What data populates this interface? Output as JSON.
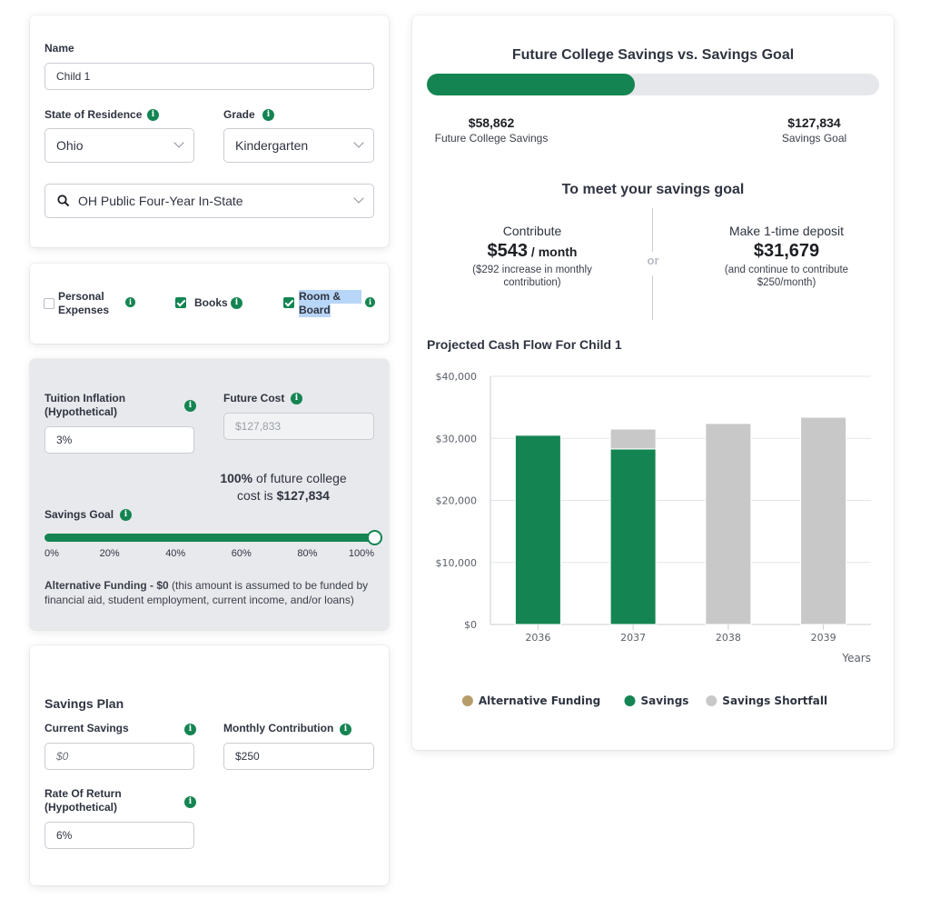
{
  "child_card": {
    "name_label": "Name",
    "name_value": "Child 1",
    "state_label": "State of Residence",
    "state_value": "Ohio",
    "grade_label": "Grade",
    "grade_value": "Kindergarten",
    "school_value": "OH Public Four-Year In-State"
  },
  "expenses": {
    "personal_label_1": "Personal",
    "personal_label_2": "Expenses",
    "personal_checked": false,
    "books_label": "Books",
    "books_checked": true,
    "room_label_1": "Room &",
    "room_label_2": "Board",
    "room_checked": true
  },
  "inflation": {
    "tuition_label_1": "Tuition Inflation",
    "tuition_label_2": "(Hypothetical)",
    "tuition_value": "3%",
    "future_cost_label": "Future Cost",
    "future_cost_placeholder": "$127,833",
    "coverage_pct": "100%",
    "coverage_text_1": " of future college",
    "coverage_text_2": "cost is ",
    "coverage_amount": "$127,834",
    "savings_goal_label": "Savings Goal",
    "slider_fraction": 1.0,
    "slider_ticks": [
      "0%",
      "20%",
      "40%",
      "60%",
      "80%",
      "100%"
    ],
    "alt_funding_bold": "Alternative Funding - $0",
    "alt_funding_text_1": " (this amount is assumed to be funded by",
    "alt_funding_text_2": "financial aid, student employment, current income, and/or loans)"
  },
  "plan": {
    "title": "Savings Plan",
    "current_savings_label": "Current Savings",
    "current_savings_placeholder": "$0",
    "monthly_label": "Monthly Contribution",
    "monthly_value": "$250",
    "return_label_1": "Rate Of Return",
    "return_label_2": "(Hypothetical)",
    "return_value": "6%"
  },
  "summary": {
    "title": "Future College Savings vs. Savings Goal",
    "progress_fraction": 0.46,
    "future_savings_amount": "$58,862",
    "future_savings_label": "Future College Savings",
    "goal_amount": "$127,834",
    "goal_label": "Savings Goal",
    "meet_goal_title": "To meet your savings goal",
    "contribute_label": "Contribute",
    "contribute_amount": "$543",
    "contribute_unit": " / month",
    "contribute_note_1": "($292 increase in monthly",
    "contribute_note_2": "contribution)",
    "or_label": "or",
    "deposit_label": "Make 1-time deposit",
    "deposit_amount": "$31,679",
    "deposit_note_1": "(and continue to contribute",
    "deposit_note_2": "$250/month)"
  },
  "colors": {
    "green": "#148552",
    "gray_bar": "#c8c8c8",
    "gold": "#b69e6b"
  },
  "chart_data": {
    "type": "bar",
    "title": "Projected Cash Flow For Child 1",
    "xlabel": "Years",
    "ylabel": "",
    "categories": [
      "2036",
      "2037",
      "2038",
      "2039"
    ],
    "ylim": [
      0,
      40000
    ],
    "yticks": [
      0,
      10000,
      20000,
      30000,
      40000
    ],
    "ytick_labels": [
      "$0",
      "$10,000",
      "$20,000",
      "$30,000",
      "$40,000"
    ],
    "stacked": true,
    "grid": true,
    "legend_position": "bottom",
    "series": [
      {
        "name": "Alternative Funding",
        "color": "#b69e6b",
        "values": [
          0,
          0,
          0,
          0
        ]
      },
      {
        "name": "Savings",
        "color": "#148552",
        "values": [
          30500,
          28300,
          0,
          0
        ]
      },
      {
        "name": "Savings Shortfall",
        "color": "#c8c8c8",
        "values": [
          0,
          3200,
          32400,
          33400
        ]
      }
    ]
  }
}
